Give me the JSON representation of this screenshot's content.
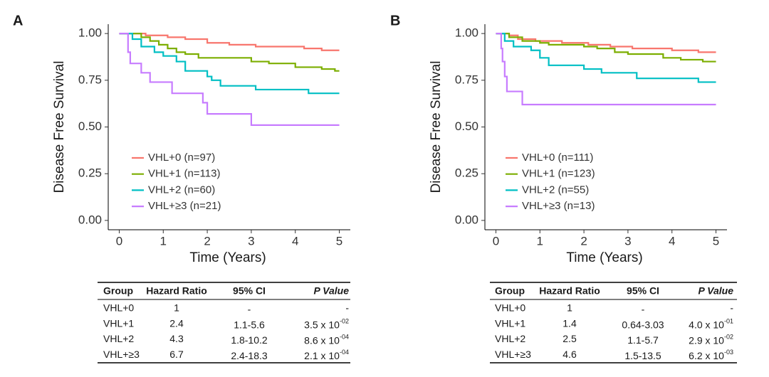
{
  "chart_data": [
    {
      "type": "step",
      "panel": "A",
      "ylabel": "Disease Free Survival",
      "xlabel": "Time (Years)",
      "xlim": [
        -0.25,
        5.25
      ],
      "ylim": [
        -0.05,
        1.05
      ],
      "xticks": [
        0,
        1,
        2,
        3,
        4,
        5
      ],
      "yticks": [
        {
          "value": 0,
          "label": "0.00"
        },
        {
          "value": 0.25,
          "label": "0.25"
        },
        {
          "value": 0.5,
          "label": "0.50"
        },
        {
          "value": 0.75,
          "label": "0.75"
        },
        {
          "value": 1,
          "label": "1.00"
        }
      ],
      "series": [
        {
          "name": "VHL+0 (n=97)",
          "color": "#F8766D",
          "x": [
            0,
            0.6,
            1.1,
            1.5,
            2.0,
            2.5,
            3.1,
            4.2,
            4.6,
            5
          ],
          "values": [
            1,
            0.99,
            0.98,
            0.97,
            0.95,
            0.94,
            0.93,
            0.92,
            0.91,
            0.91
          ]
        },
        {
          "name": "VHL+1 (n=113)",
          "color": "#7CAE00",
          "x": [
            0,
            0.5,
            0.7,
            0.9,
            1.1,
            1.3,
            1.5,
            1.8,
            3.0,
            3.4,
            4.0,
            4.6,
            4.9,
            5
          ],
          "values": [
            1,
            0.98,
            0.96,
            0.94,
            0.92,
            0.9,
            0.89,
            0.87,
            0.85,
            0.84,
            0.82,
            0.81,
            0.8,
            0.8
          ]
        },
        {
          "name": "VHL+2 (n=60)",
          "color": "#00BFC4",
          "x": [
            0,
            0.3,
            0.5,
            0.8,
            1.0,
            1.3,
            1.5,
            2.0,
            2.1,
            2.3,
            3.1,
            4.3,
            5
          ],
          "values": [
            1,
            0.97,
            0.93,
            0.9,
            0.88,
            0.85,
            0.8,
            0.77,
            0.75,
            0.72,
            0.7,
            0.68,
            0.68
          ]
        },
        {
          "name": "VHL+≥3 (n=21)",
          "color": "#C77CFF",
          "x": [
            0,
            0.2,
            0.25,
            0.5,
            0.7,
            1.2,
            1.9,
            2.0,
            3.0,
            5
          ],
          "values": [
            1,
            0.9,
            0.84,
            0.79,
            0.74,
            0.68,
            0.63,
            0.57,
            0.51,
            0.51
          ]
        }
      ]
    },
    {
      "type": "step",
      "panel": "B",
      "ylabel": "Disease Free Survival",
      "xlabel": "Time (Years)",
      "xlim": [
        -0.25,
        5.25
      ],
      "ylim": [
        -0.05,
        1.05
      ],
      "xticks": [
        0,
        1,
        2,
        3,
        4,
        5
      ],
      "yticks": [
        {
          "value": 0,
          "label": "0.00"
        },
        {
          "value": 0.25,
          "label": "0.25"
        },
        {
          "value": 0.5,
          "label": "0.50"
        },
        {
          "value": 0.75,
          "label": "0.75"
        },
        {
          "value": 1,
          "label": "1.00"
        }
      ],
      "series": [
        {
          "name": "VHL+0 (n=111)",
          "color": "#F8766D",
          "x": [
            0,
            0.3,
            0.5,
            0.9,
            1.5,
            2.1,
            2.6,
            3.1,
            4.0,
            4.6,
            5
          ],
          "values": [
            1,
            0.99,
            0.97,
            0.96,
            0.95,
            0.94,
            0.93,
            0.92,
            0.91,
            0.9,
            0.9
          ]
        },
        {
          "name": "VHL+1 (n=123)",
          "color": "#7CAE00",
          "x": [
            0,
            0.3,
            0.6,
            1.0,
            1.2,
            2.0,
            2.3,
            2.7,
            3.0,
            3.8,
            4.2,
            4.7,
            5
          ],
          "values": [
            1,
            0.98,
            0.96,
            0.95,
            0.94,
            0.93,
            0.92,
            0.9,
            0.89,
            0.87,
            0.86,
            0.85,
            0.85
          ]
        },
        {
          "name": "VHL+2 (n=55)",
          "color": "#00BFC4",
          "x": [
            0,
            0.2,
            0.4,
            0.8,
            1.0,
            1.2,
            2.0,
            2.4,
            3.2,
            4.6,
            5
          ],
          "values": [
            1,
            0.96,
            0.93,
            0.91,
            0.87,
            0.83,
            0.81,
            0.79,
            0.76,
            0.74,
            0.74
          ]
        },
        {
          "name": "VHL+≥3 (n=13)",
          "color": "#C77CFF",
          "x": [
            0,
            0.12,
            0.15,
            0.2,
            0.25,
            0.6,
            5
          ],
          "values": [
            1,
            0.92,
            0.85,
            0.77,
            0.69,
            0.62,
            0.62
          ]
        }
      ]
    }
  ],
  "tables": [
    {
      "header": [
        "Group",
        "Hazard Ratio",
        "95% CI",
        "P Value"
      ],
      "rows": [
        [
          "VHL+0",
          1,
          "-",
          "-"
        ],
        [
          "VHL+1",
          2.4,
          "1.1-5.6",
          {
            "text": "3.5 x 10",
            "exponent": "-02"
          }
        ],
        [
          "VHL+2",
          4.3,
          "1.8-10.2",
          {
            "text": "8.6 x 10",
            "exponent": "-04"
          }
        ],
        [
          "VHL+≥3",
          6.7,
          "2.4-18.3",
          {
            "text": "2.1 x 10",
            "exponent": "-04"
          }
        ]
      ]
    },
    {
      "header": [
        "Group",
        "Hazard Ratio",
        "95% CI",
        "P Value"
      ],
      "rows": [
        [
          "VHL+0",
          1,
          "-",
          "-"
        ],
        [
          "VHL+1",
          1.4,
          "0.64-3.03",
          {
            "text": "4.0 x 10",
            "exponent": "-01"
          }
        ],
        [
          "VHL+2",
          2.5,
          "1.1-5.7",
          {
            "text": "2.9 x 10",
            "exponent": "-02"
          }
        ],
        [
          "VHL+≥3",
          4.6,
          "1.5-13.5",
          {
            "text": "6.2 x 10",
            "exponent": "-03"
          }
        ]
      ]
    }
  ]
}
